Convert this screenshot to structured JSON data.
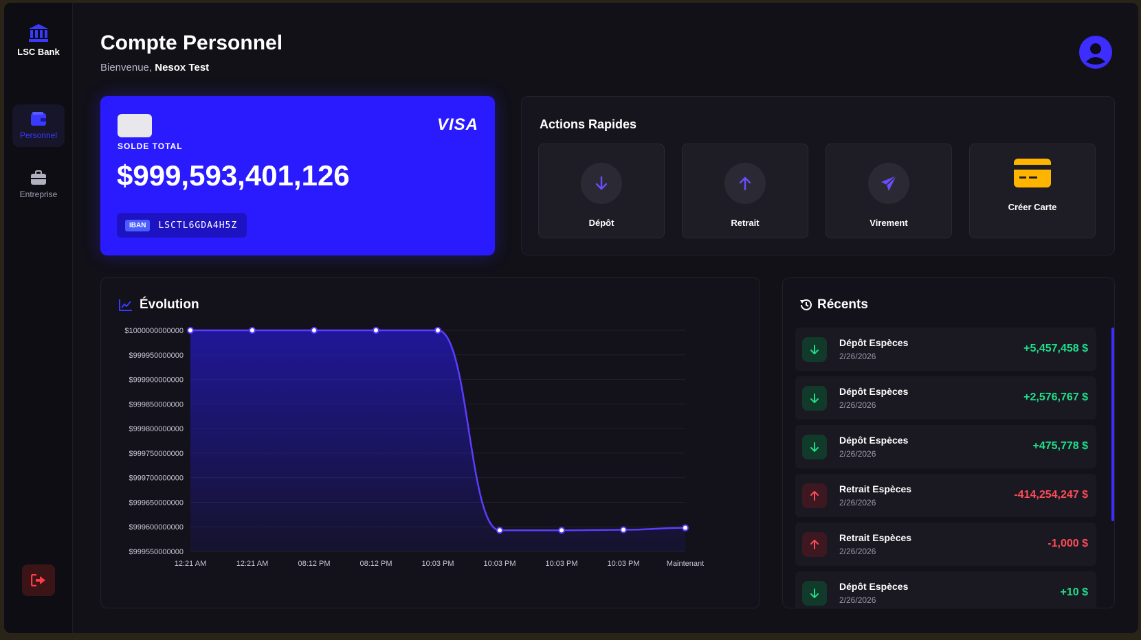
{
  "sidebar": {
    "brand": "LSC Bank",
    "items": [
      {
        "label": "Personnel",
        "icon": "wallet-icon",
        "active": true
      },
      {
        "label": "Entreprise",
        "icon": "briefcase-icon",
        "active": false
      }
    ],
    "logout_icon": "logout-icon"
  },
  "header": {
    "title": "Compte Personnel",
    "welcome_prefix": "Bienvenue,",
    "user_name": "Nesox Test"
  },
  "card": {
    "brand": "VISA",
    "label": "SOLDE TOTAL",
    "balance": "$999,593,401,126",
    "iban_tag": "IBAN",
    "iban": "LSCTL6GDA4H5Z"
  },
  "actions": {
    "title": "Actions Rapides",
    "items": [
      {
        "label": "Dépôt",
        "icon": "arrow-down-icon"
      },
      {
        "label": "Retrait",
        "icon": "arrow-up-icon"
      },
      {
        "label": "Virement",
        "icon": "paper-plane-icon"
      },
      {
        "label": "Créer Carte",
        "icon": "credit-card-icon"
      }
    ]
  },
  "evolution": {
    "title": "Évolution"
  },
  "chart_data": {
    "type": "area",
    "categories": [
      "12:21 AM",
      "12:21 AM",
      "08:12 PM",
      "08:12 PM",
      "10:03 PM",
      "10:03 PM",
      "10:03 PM",
      "10:03 PM",
      "Maintenant"
    ],
    "values": [
      1000000000000,
      1000000000000,
      1000000000000,
      1000000000000,
      1000000000000,
      999593000000,
      999593000000,
      999594000000,
      999598000000
    ],
    "ylim": [
      999550000000,
      1000000000000
    ],
    "yticks": [
      1000000000000,
      999950000000,
      999900000000,
      999850000000,
      999800000000,
      999750000000,
      999700000000,
      999650000000,
      999600000000,
      999550000000
    ],
    "ytick_labels": [
      "$1000000000000",
      "$999950000000",
      "$999900000000",
      "$999850000000",
      "$999800000000",
      "$999750000000",
      "$999700000000",
      "$999650000000",
      "$999600000000",
      "$999550000000"
    ],
    "line_color": "#5b3dff",
    "grid": true
  },
  "recents": {
    "title": "Récents",
    "transactions": [
      {
        "name": "Dépôt Espèces",
        "date": "2/26/2026",
        "amount": "+5,457,458 $",
        "type": "in"
      },
      {
        "name": "Dépôt Espèces",
        "date": "2/26/2026",
        "amount": "+2,576,767 $",
        "type": "in"
      },
      {
        "name": "Dépôt Espèces",
        "date": "2/26/2026",
        "amount": "+475,778 $",
        "type": "in"
      },
      {
        "name": "Retrait Espèces",
        "date": "2/26/2026",
        "amount": "-414,254,247 $",
        "type": "out"
      },
      {
        "name": "Retrait Espèces",
        "date": "2/26/2026",
        "amount": "-1,000 $",
        "type": "out"
      },
      {
        "name": "Dépôt Espèces",
        "date": "2/26/2026",
        "amount": "+10 $",
        "type": "in"
      }
    ]
  },
  "colors": {
    "accent": "#2a1bff",
    "positive": "#1ee08a",
    "negative": "#ff4b57",
    "card_icon": "#ffb400"
  }
}
